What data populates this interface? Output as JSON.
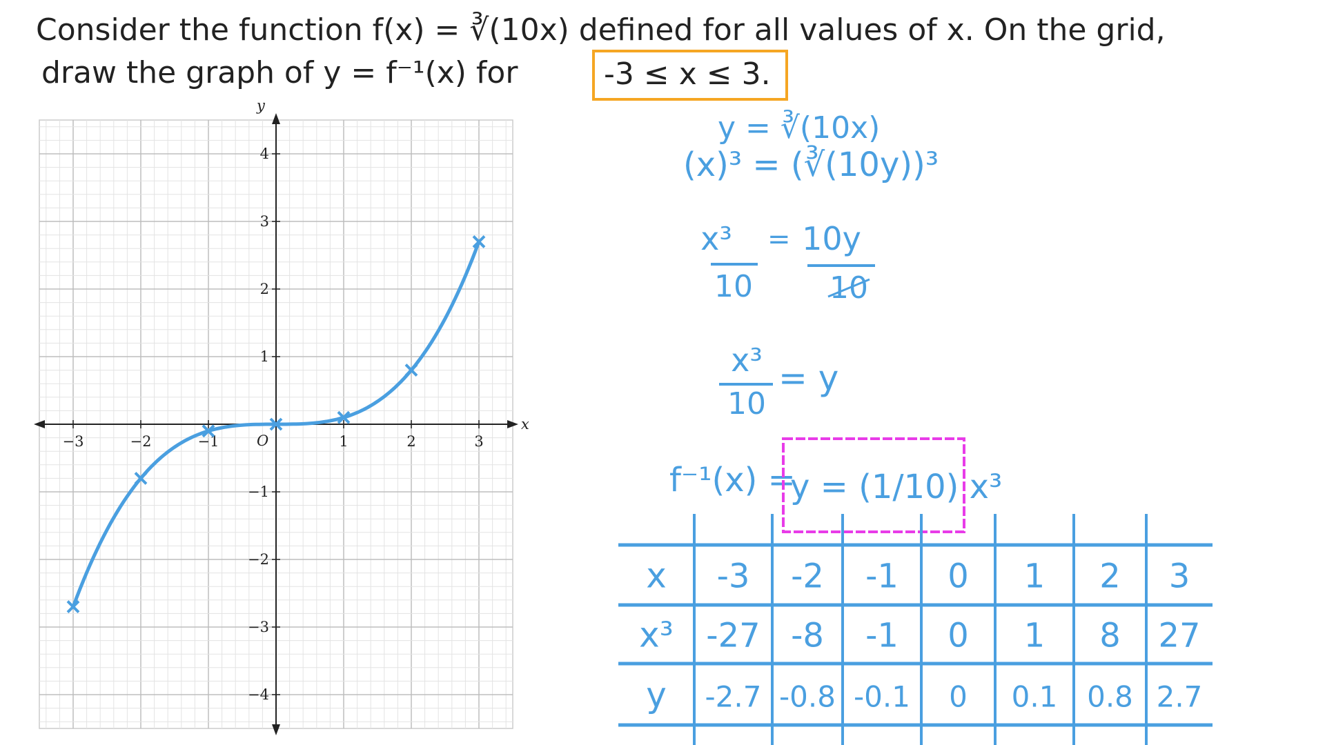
{
  "question": {
    "line1": "Consider the function f(x) = ∛(10x) defined for all values of x. On the grid,",
    "line2_prefix": "draw the graph of y = f⁻¹(x) for",
    "domain_highlight": "-3 ≤ x ≤ 3."
  },
  "working": {
    "step1": "y = ∛(10x)",
    "step2": "(x)³ = (∛(10y))³",
    "step3_lhs_num": "x³",
    "step3_lhs_den": "10",
    "step3_eq": "=",
    "step3_rhs_num": "10y",
    "step3_rhs_den": "10",
    "step4_num": "x³",
    "step4_den": "10",
    "step4_rhs": "= y",
    "result_prefix": "f⁻¹(x) =",
    "result_boxed": "y = (1/10) x³"
  },
  "table": {
    "row_labels": [
      "x",
      "x³",
      "y"
    ],
    "x": [
      "-3",
      "-2",
      "-1",
      "0",
      "1",
      "2",
      "3"
    ],
    "x_cubed": [
      "-27",
      "-8",
      "-1",
      "0",
      "1",
      "8",
      "27"
    ],
    "y": [
      "-2.7",
      "-0.8",
      "-0.1",
      "0",
      "0.1",
      "0.8",
      "2.7"
    ]
  },
  "colors": {
    "ink": "#4a9fe0",
    "highlight_orange": "#f5a623",
    "highlight_magenta": "#e83ce8",
    "grid": "#d0d0d0"
  },
  "chart_data": {
    "type": "line",
    "title": "",
    "xlabel": "x",
    "ylabel": "y",
    "origin_label": "O",
    "xlim": [
      -3.5,
      3.5
    ],
    "ylim": [
      -4.5,
      4.5
    ],
    "x_ticks": [
      "−3",
      "−2",
      "−1",
      "1",
      "2",
      "3"
    ],
    "x_tick_values": [
      -3,
      -2,
      -1,
      1,
      2,
      3
    ],
    "y_ticks": [
      "−4",
      "−3",
      "−2",
      "−1",
      "1",
      "2",
      "3",
      "4"
    ],
    "y_tick_values": [
      -4,
      -3,
      -2,
      -1,
      1,
      2,
      3,
      4
    ],
    "grid": true,
    "series": [
      {
        "x": [
          -3,
          -2,
          -1,
          0,
          1,
          2,
          3
        ],
        "y": [
          -2.7,
          -0.8,
          -0.1,
          0,
          0.1,
          0.8,
          2.7
        ]
      }
    ]
  }
}
